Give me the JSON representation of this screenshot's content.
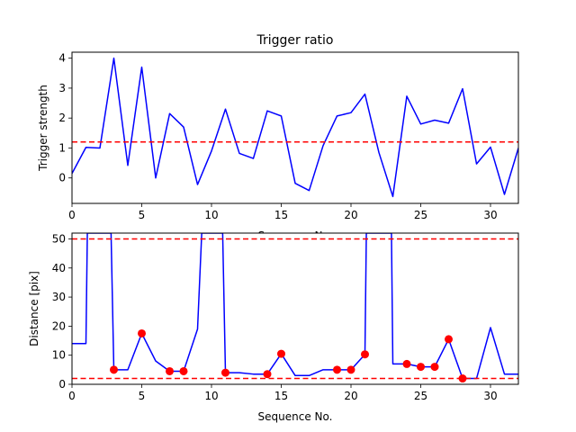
{
  "chart_data": [
    {
      "type": "line",
      "title": "Trigger ratio",
      "xlabel": "Sequence No.",
      "ylabel": "Trigger strength",
      "xlim": [
        0,
        32
      ],
      "ylim": [
        -0.85,
        4.2
      ],
      "xticks": [
        0,
        5,
        10,
        15,
        20,
        25,
        30
      ],
      "yticks": [
        0,
        1,
        2,
        3,
        4
      ],
      "grid": false,
      "series": [
        {
          "color": "#0000ff",
          "x": [
            0,
            1,
            2,
            3,
            4,
            5,
            6,
            7,
            8,
            9,
            10,
            11,
            12,
            13,
            14,
            15,
            16,
            17,
            18,
            19,
            20,
            21,
            22,
            23,
            24,
            25,
            26,
            27,
            28,
            29,
            30,
            31,
            32
          ],
          "values": [
            0.15,
            1.02,
            1.0,
            4.0,
            0.42,
            3.7,
            0.0,
            2.15,
            1.7,
            -0.22,
            0.9,
            2.3,
            0.82,
            0.65,
            2.24,
            2.07,
            -0.18,
            -0.42,
            1.08,
            2.07,
            2.18,
            2.8,
            0.85,
            -0.62,
            2.73,
            1.8,
            1.93,
            1.83,
            2.98,
            0.47,
            1.03,
            -0.55,
            1.0
          ]
        }
      ],
      "threshold": {
        "value": 1.2,
        "color": "#ff0000",
        "style": "dashed"
      }
    },
    {
      "type": "line",
      "title": "",
      "xlabel": "Sequence No.",
      "ylabel": "Distance [pix]",
      "xlim": [
        0,
        32
      ],
      "ylim": [
        0,
        52
      ],
      "xticks": [
        0,
        5,
        10,
        15,
        20,
        25,
        30
      ],
      "yticks": [
        0,
        10,
        20,
        30,
        40,
        50
      ],
      "grid": false,
      "series": [
        {
          "color": "#0000ff",
          "x": [
            0,
            1,
            1.1,
            2.8,
            3,
            4,
            5,
            6,
            7,
            8,
            9,
            9.3,
            10.8,
            11,
            12,
            13,
            14,
            15,
            16,
            17,
            18,
            19,
            20,
            21,
            21.1,
            22.9,
            23,
            24,
            25,
            26,
            27,
            28,
            29,
            30,
            31,
            32
          ],
          "values": [
            14,
            14,
            52,
            52,
            5,
            5,
            17.5,
            8,
            4.5,
            4.5,
            19,
            52,
            52,
            4,
            4,
            3.5,
            3.5,
            10.5,
            3,
            3,
            5,
            5,
            5,
            10.3,
            52,
            52,
            7,
            7,
            6,
            6,
            15.5,
            2,
            2,
            19.5,
            3.5,
            3.5
          ]
        }
      ],
      "markers": {
        "color": "#ff0000",
        "x": [
          3,
          5,
          7,
          8,
          11,
          14,
          15,
          19,
          20,
          21,
          24,
          25,
          26,
          27,
          28
        ],
        "y": [
          5,
          17.5,
          4.5,
          4.5,
          4,
          3.5,
          10.5,
          5,
          5,
          10.3,
          7,
          6,
          6,
          15.5,
          2
        ]
      },
      "thresholds": [
        {
          "value": 50,
          "color": "#ff0000",
          "style": "dashed"
        },
        {
          "value": 2,
          "color": "#ff0000",
          "style": "dashed"
        }
      ]
    }
  ]
}
